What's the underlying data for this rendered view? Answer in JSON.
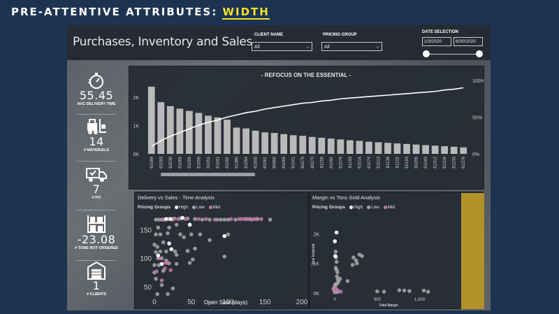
{
  "slide": {
    "title_prefix": "PRE-ATTENTIVE ATTRIBUTES: ",
    "title_highlight": "WIDTH"
  },
  "header": {
    "title": "Purchases, Inventory and Sales",
    "client_filter": {
      "label": "CLIENT NAME",
      "value": "All"
    },
    "pricing_filter": {
      "label": "PRICING GROUP",
      "value": "All"
    },
    "date_filter": {
      "label": "DATE SELECTION",
      "start": "1/3/2020",
      "end": "6/30/2020"
    }
  },
  "kpis": [
    {
      "value": "55.45",
      "label": "AVG DELIVERY TIME",
      "icon": "stopwatch-icon"
    },
    {
      "value": "14",
      "label": "# MATERIALS",
      "icon": "forklift-icon"
    },
    {
      "value": "7",
      "label": "# PO",
      "icon": "delivery-truck-icon"
    },
    {
      "value": "-23.08",
      "label": "# TONS NOT ORDERED",
      "icon": "warehouse-shelves-icon"
    },
    {
      "value": "1",
      "label": "# CLIENTS",
      "icon": "warehouse-icon"
    }
  ],
  "colors": {
    "high": "#ffffff",
    "low": "#a8a8a8",
    "mid": "#c07aa8",
    "bar": "#b9b9b9",
    "accent_yellow": "#f2e12a"
  },
  "charts": {
    "pareto": {
      "title": "- REFOCUS ON THE ESSENTIAL -"
    },
    "delivery_sales": {
      "title": "Delivery vs Sales - Time Analysis",
      "legend_title": "Pricing Groups",
      "legend": [
        "High",
        "Low",
        "Mid"
      ]
    },
    "margin_tons": {
      "title": "Margin vs Tons Sold Analysis",
      "legend_title": "Pricing Groups",
      "legend": [
        "High",
        "Low",
        "Mid"
      ]
    }
  },
  "chart_data": [
    {
      "type": "bar",
      "title": "- REFOCUS ON THE ESSENTIAL -",
      "categories": [
        "61084",
        "61083",
        "62030",
        "61065",
        "61095",
        "61059",
        "61051",
        "61041",
        "61092",
        "61380",
        "61054",
        "61500",
        "61061",
        "60960",
        "61065",
        "61041",
        "60270",
        "60270",
        "61155",
        "61092",
        "61076",
        "61183",
        "61014",
        "61074",
        "61013",
        "61138",
        "61102",
        "62193",
        "60205",
        "61043",
        "61312",
        "61316",
        "61233",
        "61276"
      ],
      "series": [
        {
          "type": "bar",
          "values": [
            2380,
            1830,
            1690,
            1600,
            1520,
            1450,
            1350,
            1290,
            1210,
            930,
            900,
            820,
            760,
            740,
            700,
            660,
            640,
            600,
            570,
            540,
            510,
            480,
            460,
            430,
            410,
            390,
            370,
            350,
            330,
            310,
            290,
            270,
            250,
            230
          ]
        },
        {
          "type": "line",
          "axis": "right",
          "values": [
            10,
            18,
            24,
            29,
            34,
            39,
            43,
            46,
            50,
            53,
            56,
            58,
            61,
            63,
            65,
            67,
            69,
            70,
            72,
            73,
            75,
            76,
            77,
            78,
            79,
            80,
            81,
            82,
            83,
            84,
            85,
            87,
            88,
            90
          ]
        }
      ],
      "y_ticks_left": [
        "0K",
        "1K",
        "2K"
      ],
      "ylim_left": [
        0,
        2600
      ],
      "y_ticks_right": [
        "0%",
        "50%",
        "100%"
      ],
      "ylim_right": [
        0,
        100
      ]
    },
    {
      "type": "scatter",
      "title": "Delivery vs Sales - Time Analysis",
      "xlabel": "Open Sale (days)",
      "x_ticks": [
        "0",
        "50",
        "100",
        "150",
        "200"
      ],
      "xlim": [
        0,
        200
      ],
      "y_ticks": [
        "50",
        "100",
        "150"
      ],
      "ylim": [
        35,
        185
      ],
      "series": [
        {
          "name": "High",
          "points": [
            [
              16,
              170
            ],
            [
              20,
              127
            ],
            [
              23,
              117
            ],
            [
              5,
              106
            ],
            [
              10,
              91
            ],
            [
              38,
              172
            ],
            [
              95,
              140
            ],
            [
              48,
              160
            ],
            [
              22,
              170
            ]
          ]
        },
        {
          "name": "Low",
          "points": [
            [
              2,
              169
            ],
            [
              6,
              169
            ],
            [
              10,
              169
            ],
            [
              14,
              169
            ],
            [
              20,
              170
            ],
            [
              27,
              171
            ],
            [
              35,
              171
            ],
            [
              45,
              171
            ],
            [
              55,
              170
            ],
            [
              65,
              169
            ],
            [
              75,
              169
            ],
            [
              85,
              169
            ],
            [
              90,
              169
            ],
            [
              95,
              169
            ],
            [
              100,
              169
            ],
            [
              110,
              169
            ],
            [
              125,
              170
            ],
            [
              130,
              170
            ],
            [
              140,
              170
            ],
            [
              157,
              169
            ],
            [
              5,
              155
            ],
            [
              20,
              155
            ],
            [
              30,
              160
            ],
            [
              2,
              143
            ],
            [
              8,
              143
            ],
            [
              18,
              145
            ],
            [
              35,
              143
            ],
            [
              50,
              143
            ],
            [
              62,
              143
            ],
            [
              100,
              143
            ],
            [
              40,
              138
            ],
            [
              75,
              133
            ],
            [
              0,
              125
            ],
            [
              4,
              121
            ],
            [
              12,
              129
            ],
            [
              2,
              112
            ],
            [
              8,
              113
            ],
            [
              16,
              113
            ],
            [
              28,
              113
            ],
            [
              45,
              114
            ],
            [
              55,
              118
            ],
            [
              30,
              107
            ],
            [
              5,
              101
            ],
            [
              10,
              101
            ],
            [
              52,
              99
            ],
            [
              95,
              104
            ],
            [
              0,
              89
            ],
            [
              6,
              89
            ],
            [
              16,
              97
            ],
            [
              20,
              92
            ],
            [
              30,
              91
            ],
            [
              48,
              93
            ],
            [
              12,
              79
            ],
            [
              0,
              76
            ],
            [
              2,
              65
            ],
            [
              10,
              54
            ],
            [
              25,
              48
            ],
            [
              18,
              38
            ],
            [
              4,
              38
            ]
          ]
        },
        {
          "name": "Mid",
          "points": [
            [
              12,
              169
            ],
            [
              25,
              169
            ],
            [
              32,
              170
            ],
            [
              42,
              170
            ],
            [
              60,
              170
            ],
            [
              70,
              170
            ],
            [
              82,
              169
            ],
            [
              104,
              170
            ],
            [
              115,
              170
            ],
            [
              118,
              170
            ],
            [
              122,
              170
            ],
            [
              128,
              170
            ],
            [
              132,
              169
            ],
            [
              135,
              170
            ],
            [
              138,
              170
            ],
            [
              145,
              170
            ],
            [
              8,
              101
            ],
            [
              15,
              93
            ],
            [
              18,
              93
            ],
            [
              14,
              83
            ],
            [
              22,
              80
            ],
            [
              3,
              78
            ],
            [
              10,
              62
            ]
          ]
        }
      ]
    },
    {
      "type": "scatter",
      "title": "Margin vs Tons Sold Analysis",
      "xlabel": "Total Margin",
      "ylabel": "Tons Invoiced",
      "x_ticks": [
        "0",
        "500",
        "1,000"
      ],
      "xlim": [
        -150,
        1350
      ],
      "y_ticks": [
        "0K",
        "1K",
        "2K"
      ],
      "ylim": [
        -100,
        2700
      ],
      "series": [
        {
          "name": "High",
          "points": [
            [
              20,
              2050
            ],
            [
              0,
              1750
            ],
            [
              5,
              1250
            ]
          ]
        },
        {
          "name": "Low",
          "points": [
            [
              10,
              1400
            ],
            [
              15,
              1200
            ],
            [
              20,
              1050
            ],
            [
              10,
              850
            ],
            [
              20,
              780
            ],
            [
              30,
              700
            ],
            [
              25,
              560
            ],
            [
              35,
              450
            ],
            [
              45,
              400
            ],
            [
              60,
              480
            ],
            [
              150,
              400
            ],
            [
              30,
              320
            ],
            [
              10,
              300
            ],
            [
              0,
              250
            ],
            [
              5,
              200
            ],
            [
              -15,
              150
            ],
            [
              -5,
              120
            ],
            [
              15,
              100
            ],
            [
              220,
              1200
            ],
            [
              250,
              1100
            ],
            [
              290,
              1300
            ],
            [
              320,
              1250
            ],
            [
              210,
              950
            ],
            [
              260,
              1000
            ],
            [
              500,
              50
            ],
            [
              580,
              40
            ],
            [
              760,
              90
            ],
            [
              820,
              80
            ],
            [
              880,
              60
            ],
            [
              1050,
              80
            ],
            [
              1100,
              40
            ],
            [
              0,
              20
            ],
            [
              30,
              30
            ]
          ]
        },
        {
          "name": "Mid",
          "points": [
            [
              0,
              160
            ],
            [
              10,
              130
            ],
            [
              20,
              110
            ],
            [
              -10,
              90
            ],
            [
              40,
              70
            ],
            [
              70,
              40
            ]
          ]
        }
      ]
    }
  ]
}
